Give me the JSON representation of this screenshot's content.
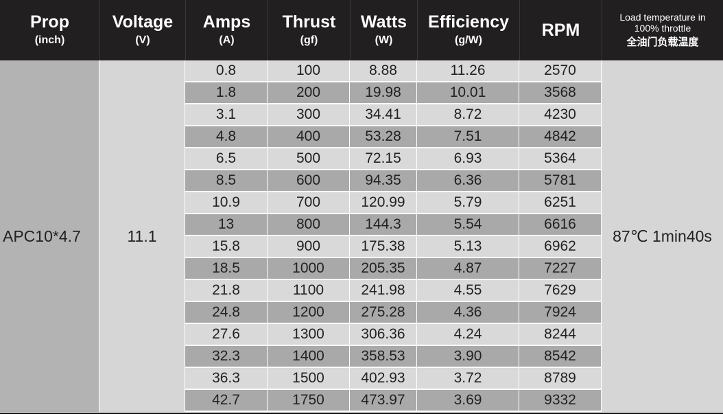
{
  "headers": {
    "prop": {
      "main": "Prop",
      "unit": "(inch)"
    },
    "voltage": {
      "main": "Voltage",
      "unit": "(V)"
    },
    "amps": {
      "main": "Amps",
      "unit": "(A)"
    },
    "thrust": {
      "main": "Thrust",
      "unit": "(gf)"
    },
    "watts": {
      "main": "Watts",
      "unit": "(W)"
    },
    "efficiency": {
      "main": "Efficiency",
      "unit": "(g/W)"
    },
    "rpm": {
      "main": "RPM"
    },
    "temp": {
      "line1": "Load temperature in",
      "line2": "100% throttle",
      "cn": "全油门负载温度"
    }
  },
  "prop": "APC10*4.7",
  "voltage": "11.1",
  "temperature": "87℃ 1min40s",
  "rows": [
    [
      "0.8",
      "100",
      "8.88",
      "11.26",
      "2570"
    ],
    [
      "1.8",
      "200",
      "19.98",
      "10.01",
      "3568"
    ],
    [
      "3.1",
      "300",
      "34.41",
      "8.72",
      "4230"
    ],
    [
      "4.8",
      "400",
      "53.28",
      "7.51",
      "4842"
    ],
    [
      "6.5",
      "500",
      "72.15",
      "6.93",
      "5364"
    ],
    [
      "8.5",
      "600",
      "94.35",
      "6.36",
      "5781"
    ],
    [
      "10.9",
      "700",
      "120.99",
      "5.79",
      "6251"
    ],
    [
      "13",
      "800",
      "144.3",
      "5.54",
      "6616"
    ],
    [
      "15.8",
      "900",
      "175.38",
      "5.13",
      "6962"
    ],
    [
      "18.5",
      "1000",
      "205.35",
      "4.87",
      "7227"
    ],
    [
      "21.8",
      "1100",
      "241.98",
      "4.55",
      "7629"
    ],
    [
      "24.8",
      "1200",
      "275.28",
      "4.36",
      "7924"
    ],
    [
      "27.6",
      "1300",
      "306.36",
      "4.24",
      "8244"
    ],
    [
      "32.3",
      "1400",
      "358.53",
      "3.90",
      "8542"
    ],
    [
      "36.3",
      "1500",
      "402.93",
      "3.72",
      "8789"
    ],
    [
      "42.7",
      "1750",
      "473.97",
      "3.69",
      "9332"
    ]
  ]
}
